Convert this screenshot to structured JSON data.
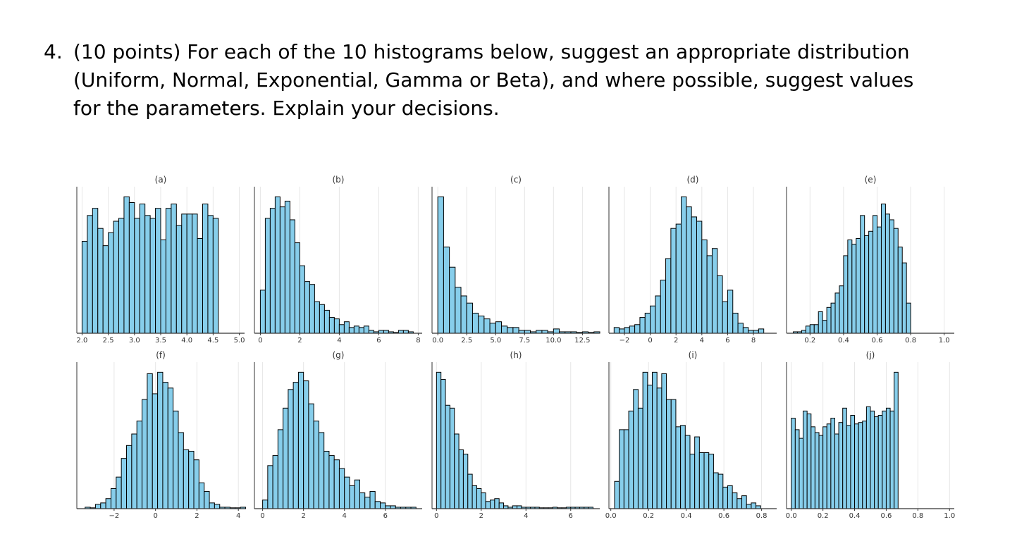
{
  "question": {
    "number": "4.",
    "lines": [
      "(10 points) For each of the 10 histograms below, suggest an appropriate distribution",
      "(Uniform, Normal, Exponential, Gamma or Beta), and where possible, suggest values",
      "for the parameters. Explain your decisions."
    ]
  },
  "colors": {
    "bar_fill": "#87ceeb",
    "bar_stroke": "#000000",
    "grid": "#e6e6e6",
    "axis": "#333333"
  },
  "chart_data": [
    {
      "type": "bar",
      "title": "(a)",
      "xlim": [
        1.9,
        5.1
      ],
      "ticks": [
        2.0,
        2.5,
        3.0,
        3.5,
        4.0,
        4.5,
        5.0
      ],
      "tick_labels": [
        "2.0",
        "2.5",
        "3.0",
        "3.5",
        "4.0",
        "4.5",
        "5.0"
      ],
      "bin_start": 2.0,
      "bin_width": 0.1,
      "counts": [
        0.64,
        0.82,
        0.87,
        0.73,
        0.61,
        0.7,
        0.78,
        0.8,
        0.95,
        0.91,
        0.8,
        0.9,
        0.82,
        0.8,
        0.87,
        0.65,
        0.87,
        0.9,
        0.75,
        0.83,
        0.83,
        0.83,
        0.66,
        0.9,
        0.82,
        0.8
      ]
    },
    {
      "type": "bar",
      "title": "(b)",
      "xlim": [
        -0.3,
        8.2
      ],
      "ticks": [
        0,
        2,
        4,
        6,
        8
      ],
      "tick_labels": [
        "0",
        "2",
        "4",
        "6",
        "8"
      ],
      "bin_start": 0.0,
      "bin_width": 0.25,
      "counts": [
        0.3,
        0.8,
        0.87,
        0.95,
        0.88,
        0.92,
        0.79,
        0.63,
        0.47,
        0.36,
        0.34,
        0.22,
        0.2,
        0.16,
        0.11,
        0.1,
        0.06,
        0.08,
        0.04,
        0.05,
        0.04,
        0.05,
        0.02,
        0.01,
        0.02,
        0.02,
        0.01,
        0.0,
        0.02,
        0.02,
        0.01
      ]
    },
    {
      "type": "bar",
      "title": "(c)",
      "xlim": [
        -0.5,
        14.0
      ],
      "ticks": [
        0.0,
        2.5,
        5.0,
        7.5,
        10.0,
        12.5
      ],
      "tick_labels": [
        "0.0",
        "2.5",
        "5.0",
        "7.5",
        "10.0",
        "12.5"
      ],
      "bin_start": 0.0,
      "bin_width": 0.5,
      "counts": [
        0.95,
        0.6,
        0.46,
        0.32,
        0.26,
        0.21,
        0.14,
        0.12,
        0.1,
        0.07,
        0.08,
        0.05,
        0.04,
        0.04,
        0.02,
        0.02,
        0.01,
        0.02,
        0.02,
        0.01,
        0.03,
        0.01,
        0.01,
        0.01,
        0.0,
        0.01,
        0.0,
        0.01
      ]
    },
    {
      "type": "bar",
      "title": "(d)",
      "xlim": [
        -3.2,
        9.8
      ],
      "ticks": [
        -2,
        0,
        2,
        4,
        6,
        8
      ],
      "tick_labels": [
        "−2",
        "0",
        "2",
        "4",
        "6",
        "8"
      ],
      "bin_start": -2.8,
      "bin_width": 0.4,
      "counts": [
        0.04,
        0.03,
        0.04,
        0.05,
        0.06,
        0.11,
        0.14,
        0.19,
        0.26,
        0.37,
        0.52,
        0.73,
        0.76,
        0.95,
        0.88,
        0.81,
        0.78,
        0.65,
        0.54,
        0.59,
        0.4,
        0.22,
        0.3,
        0.14,
        0.07,
        0.04,
        0.02,
        0.02,
        0.03
      ]
    },
    {
      "type": "bar",
      "title": "(e)",
      "xlim": [
        0.06,
        1.06
      ],
      "ticks": [
        0.2,
        0.4,
        0.6,
        0.8,
        1.0
      ],
      "tick_labels": [
        "0.2",
        "0.4",
        "0.6",
        "0.8",
        "1.0"
      ],
      "bin_start": 0.1,
      "bin_width": 0.025,
      "counts": [
        0.01,
        0.01,
        0.02,
        0.05,
        0.06,
        0.06,
        0.15,
        0.09,
        0.18,
        0.21,
        0.28,
        0.33,
        0.54,
        0.65,
        0.62,
        0.66,
        0.82,
        0.68,
        0.71,
        0.82,
        0.74,
        0.9,
        0.83,
        0.79,
        0.73,
        0.6,
        0.49,
        0.21
      ]
    },
    {
      "type": "bar",
      "title": "(f)",
      "xlim": [
        -3.8,
        4.3
      ],
      "ticks": [
        -2,
        0,
        2,
        4
      ],
      "tick_labels": [
        "−2",
        "0",
        "2",
        "4"
      ],
      "bin_start": -3.4,
      "bin_width": 0.25,
      "counts": [
        0.01,
        0.0,
        0.03,
        0.04,
        0.07,
        0.14,
        0.22,
        0.35,
        0.44,
        0.52,
        0.61,
        0.76,
        0.94,
        0.8,
        0.95,
        0.88,
        0.84,
        0.68,
        0.53,
        0.41,
        0.4,
        0.34,
        0.18,
        0.12,
        0.04,
        0.03,
        0.01,
        0.01,
        0.0,
        0.0,
        0.01
      ]
    },
    {
      "type": "bar",
      "title": "(g)",
      "xlim": [
        -0.4,
        7.8
      ],
      "ticks": [
        0,
        2,
        4,
        6
      ],
      "tick_labels": [
        "0",
        "2",
        "4",
        "6"
      ],
      "bin_start": 0.0,
      "bin_width": 0.25,
      "counts": [
        0.06,
        0.3,
        0.37,
        0.55,
        0.7,
        0.83,
        0.88,
        0.95,
        0.89,
        0.73,
        0.61,
        0.53,
        0.4,
        0.37,
        0.34,
        0.28,
        0.22,
        0.16,
        0.2,
        0.11,
        0.08,
        0.12,
        0.05,
        0.04,
        0.02,
        0.02,
        0.01,
        0.01,
        0.01,
        0.01
      ]
    },
    {
      "type": "bar",
      "title": "(h)",
      "xlim": [
        -0.2,
        7.3
      ],
      "ticks": [
        0,
        2,
        4,
        6
      ],
      "tick_labels": [
        "0",
        "2",
        "4",
        "6"
      ],
      "bin_start": 0.0,
      "bin_width": 0.2,
      "counts": [
        0.95,
        0.9,
        0.72,
        0.7,
        0.52,
        0.41,
        0.38,
        0.24,
        0.16,
        0.14,
        0.11,
        0.05,
        0.06,
        0.07,
        0.04,
        0.02,
        0.01,
        0.02,
        0.02,
        0.01,
        0.01,
        0.01,
        0.01,
        0.0,
        0.0,
        0.0,
        0.01,
        0.0,
        0.0,
        0.01,
        0.01,
        0.01,
        0.01,
        0.01,
        0.01
      ]
    },
    {
      "type": "bar",
      "title": "(i)",
      "xlim": [
        -0.01,
        0.88
      ],
      "ticks": [
        0.0,
        0.2,
        0.4,
        0.6,
        0.8
      ],
      "tick_labels": [
        "0.0",
        "0.2",
        "0.4",
        "0.6",
        "0.8"
      ],
      "bin_start": 0.02,
      "bin_width": 0.025,
      "counts": [
        0.19,
        0.55,
        0.55,
        0.68,
        0.83,
        0.7,
        0.95,
        0.86,
        0.95,
        0.84,
        0.94,
        0.76,
        0.76,
        0.57,
        0.58,
        0.51,
        0.38,
        0.5,
        0.39,
        0.39,
        0.38,
        0.25,
        0.24,
        0.15,
        0.16,
        0.11,
        0.07,
        0.09,
        0.03,
        0.04,
        0.02
      ]
    },
    {
      "type": "bar",
      "title": "(j)",
      "xlim": [
        -0.03,
        1.03
      ],
      "ticks": [
        0.0,
        0.2,
        0.4,
        0.6,
        0.8,
        1.0
      ],
      "tick_labels": [
        "0.0",
        "0.2",
        "0.4",
        "0.6",
        "0.8",
        "1.0"
      ],
      "bin_start": 0.0,
      "bin_width": 0.025,
      "counts": [
        0.63,
        0.55,
        0.49,
        0.68,
        0.66,
        0.57,
        0.53,
        0.51,
        0.57,
        0.59,
        0.63,
        0.52,
        0.6,
        0.7,
        0.58,
        0.65,
        0.59,
        0.6,
        0.61,
        0.71,
        0.68,
        0.64,
        0.65,
        0.68,
        0.7,
        0.68,
        0.95
      ]
    }
  ]
}
